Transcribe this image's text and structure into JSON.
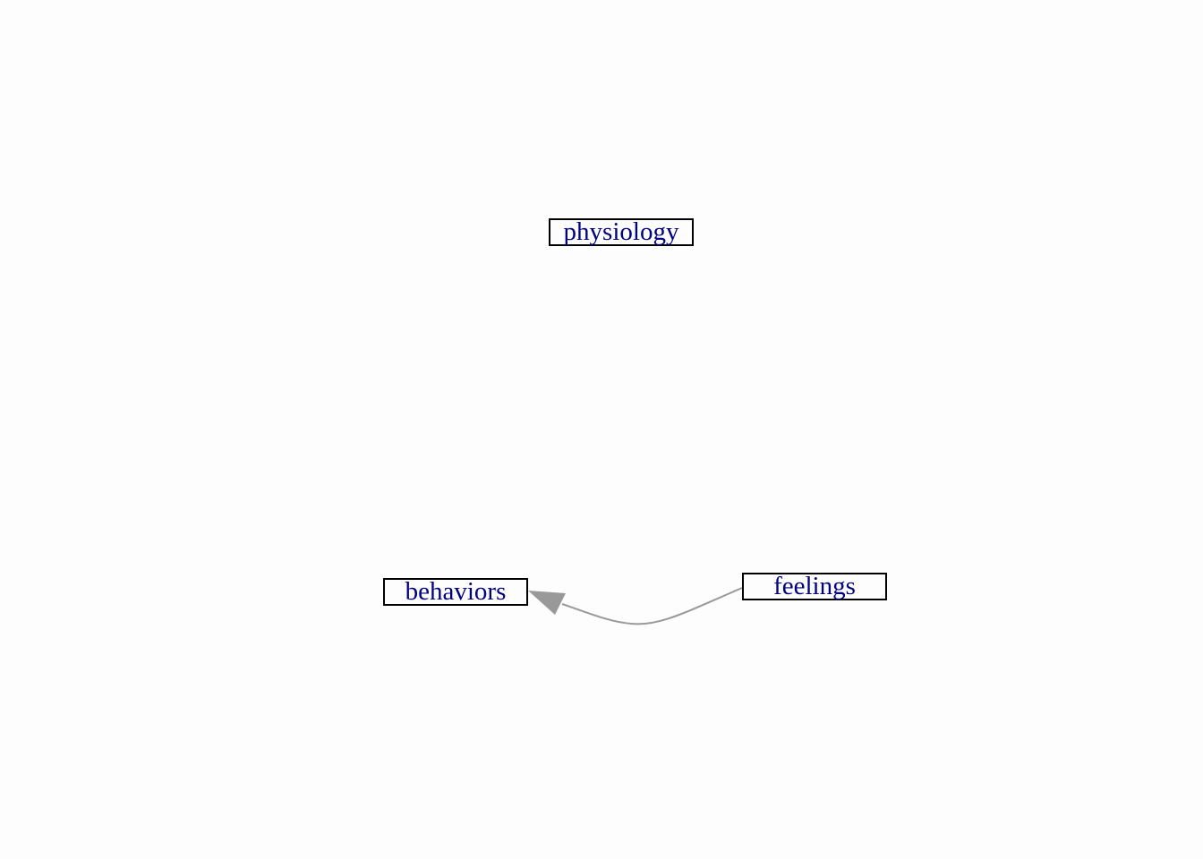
{
  "nodes": {
    "physiology": {
      "label": "physiology"
    },
    "behaviors": {
      "label": "behaviors"
    },
    "feelings": {
      "label": "feelings"
    }
  },
  "edges": [
    {
      "from": "feelings",
      "to": "behaviors",
      "color": "#999999"
    }
  ],
  "colors": {
    "background": "#fdfdfd",
    "node_text": "#000080",
    "node_border": "#000000",
    "edge": "#999999"
  }
}
